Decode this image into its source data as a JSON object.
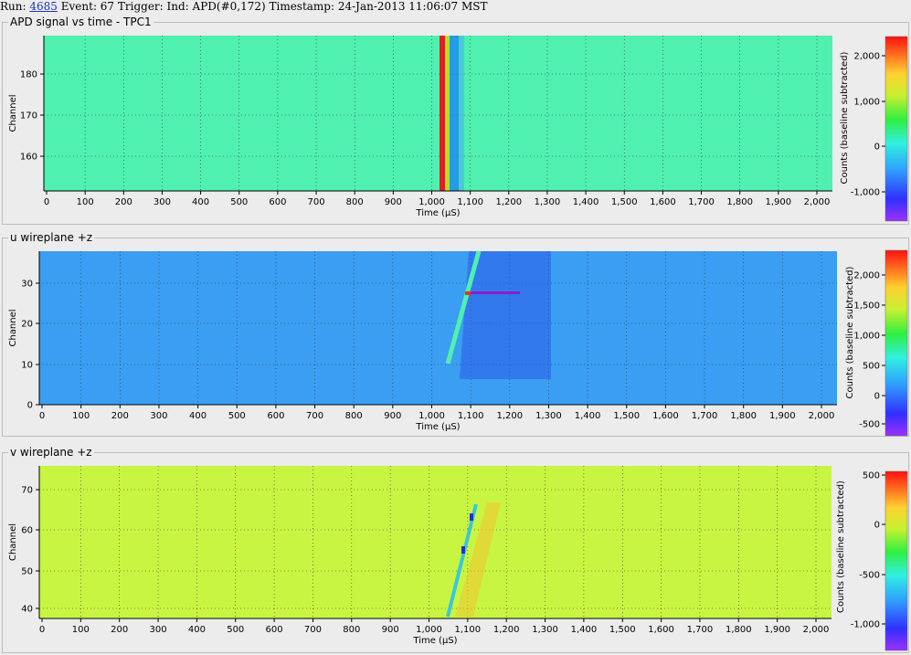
{
  "header": {
    "run_label": "Run:",
    "run_number": "4685",
    "event_text": "Event: 67 Trigger: Ind: APD(#0,172) Timestamp: 24-Jan-2013 11:06:07 MST"
  },
  "panels": [
    {
      "title": "APD signal vs time - TPC1",
      "xlabel": "Time (µS)",
      "ylabel": "Channel",
      "zlabel": "Counts (baseline subtracted)",
      "bg": "#4ff0b0",
      "x_ticks": [
        "0",
        "100",
        "200",
        "300",
        "400",
        "500",
        "600",
        "700",
        "800",
        "900",
        "1,000",
        "1,100",
        "1,200",
        "1,300",
        "1,400",
        "1,500",
        "1,600",
        "1,700",
        "1,800",
        "1,900",
        "2,000"
      ],
      "y_ticks": [
        "160",
        "170",
        "180"
      ],
      "z_ticks": [
        "2,000",
        "1,000",
        "0",
        "-1,000"
      ]
    },
    {
      "title": "u wireplane +z",
      "xlabel": "Time (µS)",
      "ylabel": "Channel",
      "zlabel": "Counts (baseline subtracted)",
      "bg": "#3a9ef2",
      "x_ticks": [
        "0",
        "100",
        "200",
        "300",
        "400",
        "500",
        "600",
        "700",
        "800",
        "900",
        "1,000",
        "1,100",
        "1,200",
        "1,300",
        "1,400",
        "1,500",
        "1,600",
        "1,700",
        "1,800",
        "1,900",
        "2,000"
      ],
      "y_ticks": [
        "0",
        "10",
        "20",
        "30"
      ],
      "z_ticks": [
        "2,000",
        "1,500",
        "1,000",
        "500",
        "0",
        "-500"
      ]
    },
    {
      "title": "v wireplane +z",
      "xlabel": "Time (µS)",
      "ylabel": "Channel",
      "zlabel": "Counts (baseline subtracted)",
      "bg": "#c8f542",
      "x_ticks": [
        "0",
        "100",
        "200",
        "300",
        "400",
        "500",
        "600",
        "700",
        "800",
        "900",
        "1,000",
        "1,100",
        "1,200",
        "1,300",
        "1,400",
        "1,500",
        "1,600",
        "1,700",
        "1,800",
        "1,900",
        "2,000"
      ],
      "y_ticks": [
        "40",
        "50",
        "60",
        "70"
      ],
      "z_ticks": [
        "500",
        "0",
        "-500",
        "-1,000"
      ]
    }
  ]
}
